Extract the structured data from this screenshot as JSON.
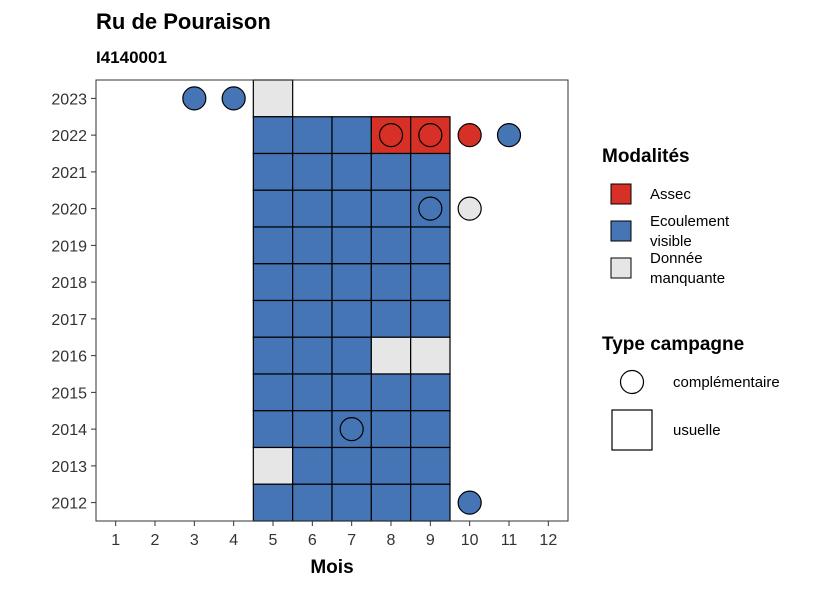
{
  "chart_data": {
    "type": "heatmap",
    "title": "Ru de Pouraison",
    "subtitle": "I4140001",
    "xlabel": "Mois",
    "ylabel": "",
    "x_ticks": [
      "1",
      "2",
      "3",
      "4",
      "5",
      "6",
      "7",
      "8",
      "9",
      "10",
      "11",
      "12"
    ],
    "y_ticks": [
      "2012",
      "2013",
      "2014",
      "2015",
      "2016",
      "2017",
      "2018",
      "2019",
      "2020",
      "2021",
      "2022",
      "2023"
    ],
    "xlim": [
      0.5,
      12.5
    ],
    "ylim": [
      2011.5,
      2023.5
    ],
    "grid": false,
    "colors": {
      "assec": "#d73027",
      "ecoulement": "#4575b4",
      "manquante": "#e6e6e6"
    },
    "legend_modalites": {
      "title": "Modalités",
      "placement": "right",
      "items": [
        {
          "key": "assec",
          "lines": [
            "Assec"
          ]
        },
        {
          "key": "ecoulement",
          "lines": [
            "Ecoulement",
            "visible"
          ]
        },
        {
          "key": "manquante",
          "lines": [
            "Donnée",
            "manquante"
          ]
        }
      ]
    },
    "legend_type": {
      "title": "Type campagne",
      "placement": "right",
      "items": [
        {
          "shape": "circle",
          "label": "complémentaire"
        },
        {
          "shape": "square",
          "label": "usuelle"
        }
      ]
    },
    "usuelle": [
      {
        "year": 2023,
        "month": 5,
        "value": "manquante"
      },
      {
        "year": 2022,
        "month": 5,
        "value": "ecoulement"
      },
      {
        "year": 2022,
        "month": 6,
        "value": "ecoulement"
      },
      {
        "year": 2022,
        "month": 7,
        "value": "ecoulement"
      },
      {
        "year": 2022,
        "month": 8,
        "value": "assec"
      },
      {
        "year": 2022,
        "month": 9,
        "value": "assec"
      },
      {
        "year": 2021,
        "month": 5,
        "value": "ecoulement"
      },
      {
        "year": 2021,
        "month": 6,
        "value": "ecoulement"
      },
      {
        "year": 2021,
        "month": 7,
        "value": "ecoulement"
      },
      {
        "year": 2021,
        "month": 8,
        "value": "ecoulement"
      },
      {
        "year": 2021,
        "month": 9,
        "value": "ecoulement"
      },
      {
        "year": 2020,
        "month": 5,
        "value": "ecoulement"
      },
      {
        "year": 2020,
        "month": 6,
        "value": "ecoulement"
      },
      {
        "year": 2020,
        "month": 7,
        "value": "ecoulement"
      },
      {
        "year": 2020,
        "month": 8,
        "value": "ecoulement"
      },
      {
        "year": 2020,
        "month": 9,
        "value": "ecoulement"
      },
      {
        "year": 2019,
        "month": 5,
        "value": "ecoulement"
      },
      {
        "year": 2019,
        "month": 6,
        "value": "ecoulement"
      },
      {
        "year": 2019,
        "month": 7,
        "value": "ecoulement"
      },
      {
        "year": 2019,
        "month": 8,
        "value": "ecoulement"
      },
      {
        "year": 2019,
        "month": 9,
        "value": "ecoulement"
      },
      {
        "year": 2018,
        "month": 5,
        "value": "ecoulement"
      },
      {
        "year": 2018,
        "month": 6,
        "value": "ecoulement"
      },
      {
        "year": 2018,
        "month": 7,
        "value": "ecoulement"
      },
      {
        "year": 2018,
        "month": 8,
        "value": "ecoulement"
      },
      {
        "year": 2018,
        "month": 9,
        "value": "ecoulement"
      },
      {
        "year": 2017,
        "month": 5,
        "value": "ecoulement"
      },
      {
        "year": 2017,
        "month": 6,
        "value": "ecoulement"
      },
      {
        "year": 2017,
        "month": 7,
        "value": "ecoulement"
      },
      {
        "year": 2017,
        "month": 8,
        "value": "ecoulement"
      },
      {
        "year": 2017,
        "month": 9,
        "value": "ecoulement"
      },
      {
        "year": 2016,
        "month": 5,
        "value": "ecoulement"
      },
      {
        "year": 2016,
        "month": 6,
        "value": "ecoulement"
      },
      {
        "year": 2016,
        "month": 7,
        "value": "ecoulement"
      },
      {
        "year": 2016,
        "month": 8,
        "value": "manquante"
      },
      {
        "year": 2016,
        "month": 9,
        "value": "manquante"
      },
      {
        "year": 2015,
        "month": 5,
        "value": "ecoulement"
      },
      {
        "year": 2015,
        "month": 6,
        "value": "ecoulement"
      },
      {
        "year": 2015,
        "month": 7,
        "value": "ecoulement"
      },
      {
        "year": 2015,
        "month": 8,
        "value": "ecoulement"
      },
      {
        "year": 2015,
        "month": 9,
        "value": "ecoulement"
      },
      {
        "year": 2014,
        "month": 5,
        "value": "ecoulement"
      },
      {
        "year": 2014,
        "month": 6,
        "value": "ecoulement"
      },
      {
        "year": 2014,
        "month": 7,
        "value": "ecoulement"
      },
      {
        "year": 2014,
        "month": 8,
        "value": "ecoulement"
      },
      {
        "year": 2014,
        "month": 9,
        "value": "ecoulement"
      },
      {
        "year": 2013,
        "month": 5,
        "value": "manquante"
      },
      {
        "year": 2013,
        "month": 6,
        "value": "ecoulement"
      },
      {
        "year": 2013,
        "month": 7,
        "value": "ecoulement"
      },
      {
        "year": 2013,
        "month": 8,
        "value": "ecoulement"
      },
      {
        "year": 2013,
        "month": 9,
        "value": "ecoulement"
      },
      {
        "year": 2012,
        "month": 5,
        "value": "ecoulement"
      },
      {
        "year": 2012,
        "month": 6,
        "value": "ecoulement"
      },
      {
        "year": 2012,
        "month": 7,
        "value": "ecoulement"
      },
      {
        "year": 2012,
        "month": 8,
        "value": "ecoulement"
      },
      {
        "year": 2012,
        "month": 9,
        "value": "ecoulement"
      }
    ],
    "complementaire": [
      {
        "year": 2023,
        "month": 3,
        "value": "ecoulement"
      },
      {
        "year": 2023,
        "month": 4,
        "value": "ecoulement"
      },
      {
        "year": 2022,
        "month": 8,
        "value": "assec"
      },
      {
        "year": 2022,
        "month": 9,
        "value": "assec"
      },
      {
        "year": 2022,
        "month": 10,
        "value": "assec"
      },
      {
        "year": 2022,
        "month": 11,
        "value": "ecoulement"
      },
      {
        "year": 2020,
        "month": 9,
        "value": "ecoulement"
      },
      {
        "year": 2020,
        "month": 10,
        "value": "manquante"
      },
      {
        "year": 2014,
        "month": 7,
        "value": "ecoulement"
      },
      {
        "year": 2012,
        "month": 10,
        "value": "ecoulement"
      }
    ]
  }
}
